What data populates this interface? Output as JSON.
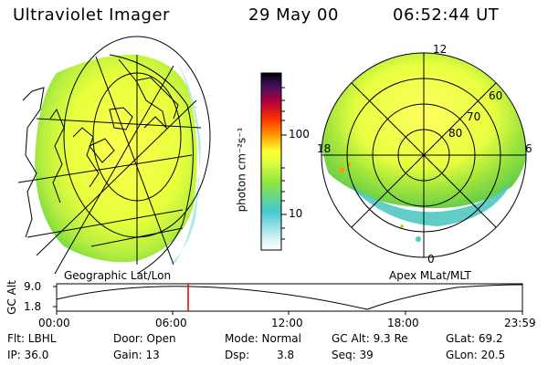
{
  "header": {
    "instrument": "Ultraviolet Imager",
    "date": "29 May 00",
    "time": "06:52:44 UT"
  },
  "colorbar": {
    "label": "photon cm⁻²s⁻¹",
    "ticks": [
      "100",
      "10"
    ],
    "colors": [
      "#ffffff",
      "#c8eef0",
      "#44c8d0",
      "#8ee63c",
      "#dfff40",
      "#ffff30",
      "#ff9800",
      "#ff3000",
      "#b00040",
      "#401060",
      "#000000"
    ]
  },
  "left_panel": {
    "title": "Geographic Lat/Lon"
  },
  "right_panel": {
    "title": "Apex MLat/MLT",
    "mlt_labels": {
      "top": "12",
      "left": "18",
      "right": "6",
      "bottom": "0"
    },
    "lat_labels": [
      "60",
      "70",
      "80"
    ]
  },
  "altitude_plot": {
    "ylabel": "GC Alt",
    "y_ticks": [
      "9.0",
      "1.8"
    ],
    "x_ticks": [
      "00:00",
      "06:00",
      "12:00",
      "18:00",
      "23:59"
    ],
    "marker_color": "#e00000"
  },
  "info": {
    "flt": "Flt: LBHL",
    "ip": "IP: 36.0",
    "door": "Door: Open",
    "gain": "Gain: 13",
    "mode": "Mode: Normal",
    "dsp_label": "Dsp:",
    "dsp_value": "3.8",
    "gc_alt": "GC Alt: 9.3 Re",
    "seq": "Seq: 39",
    "glat": "GLat: 69.2",
    "glon": "GLon: 20.5"
  }
}
